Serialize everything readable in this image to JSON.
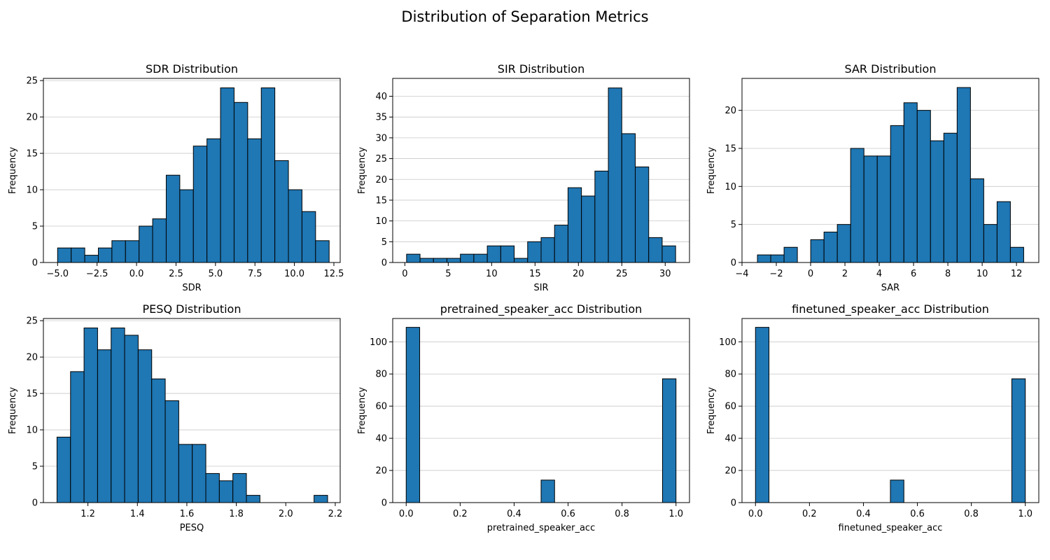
{
  "figure": {
    "title": "Distribution of Separation Metrics"
  },
  "colors": {
    "bar": "#1f77b4",
    "edge": "#000000",
    "grid": "#c8c8c8"
  },
  "chart_data": [
    {
      "type": "bar",
      "title": "SDR Distribution",
      "xlabel": "SDR",
      "ylabel": "Frequency",
      "bin_start": -5.0,
      "bin_width": 0.86,
      "values": [
        2,
        2,
        1,
        2,
        3,
        3,
        5,
        6,
        12,
        10,
        16,
        17,
        24,
        22,
        17,
        24,
        14,
        10,
        7,
        3
      ],
      "xlim": [
        -5.9,
        12.9
      ],
      "ylim": [
        0,
        25.3
      ],
      "xticks": [
        -5.0,
        -2.5,
        0.0,
        2.5,
        5.0,
        7.5,
        10.0,
        12.5
      ],
      "xtick_labels": [
        "−5.0",
        "−2.5",
        "0.0",
        "2.5",
        "5.0",
        "7.5",
        "10.0",
        "12.5"
      ],
      "yticks": [
        0,
        5,
        10,
        15,
        20,
        25
      ],
      "ytick_labels": [
        "0",
        "5",
        "10",
        "15",
        "20",
        "25"
      ],
      "grid": "y"
    },
    {
      "type": "bar",
      "title": "SIR Distribution",
      "xlabel": "SIR",
      "ylabel": "Frequency",
      "bin_start": 0.2,
      "bin_width": 1.55,
      "values": [
        2,
        1,
        1,
        1,
        2,
        2,
        4,
        4,
        1,
        5,
        6,
        9,
        18,
        16,
        22,
        42,
        31,
        23,
        6,
        4
      ],
      "xlim": [
        -1.4,
        32.8
      ],
      "ylim": [
        0,
        44.3
      ],
      "xticks": [
        0,
        5,
        10,
        15,
        20,
        25,
        30
      ],
      "xtick_labels": [
        "0",
        "5",
        "10",
        "15",
        "20",
        "25",
        "30"
      ],
      "yticks": [
        0,
        5,
        10,
        15,
        20,
        25,
        30,
        35,
        40
      ],
      "ytick_labels": [
        "0",
        "5",
        "10",
        "15",
        "20",
        "25",
        "30",
        "35",
        "40"
      ],
      "grid": "y"
    },
    {
      "type": "bar",
      "title": "SAR Distribution",
      "xlabel": "SAR",
      "ylabel": "Frequency",
      "bin_start": -3.1,
      "bin_width": 0.776,
      "values": [
        1,
        1,
        2,
        0,
        3,
        4,
        5,
        15,
        14,
        14,
        18,
        21,
        20,
        16,
        17,
        23,
        11,
        5,
        8,
        2
      ],
      "xlim": [
        -4.0,
        13.3
      ],
      "ylim": [
        0,
        24.2
      ],
      "xticks": [
        -4,
        -2,
        0,
        2,
        4,
        6,
        8,
        10,
        12
      ],
      "xtick_labels": [
        "−4",
        "−2",
        "0",
        "2",
        "4",
        "6",
        "8",
        "10",
        "12"
      ],
      "yticks": [
        0,
        5,
        10,
        15,
        20
      ],
      "ytick_labels": [
        "0",
        "5",
        "10",
        "15",
        "20"
      ],
      "grid": "y"
    },
    {
      "type": "bar",
      "title": "PESQ Distribution",
      "xlabel": "PESQ",
      "ylabel": "Frequency",
      "bin_start": 1.075,
      "bin_width": 0.0547,
      "values": [
        9,
        18,
        24,
        21,
        24,
        23,
        21,
        17,
        14,
        8,
        8,
        4,
        3,
        4,
        1,
        0,
        0,
        0,
        0,
        1
      ],
      "xlim": [
        1.02,
        2.22
      ],
      "ylim": [
        0,
        25.3
      ],
      "xticks": [
        1.2,
        1.4,
        1.6,
        1.8,
        2.0,
        2.2
      ],
      "xtick_labels": [
        "1.2",
        "1.4",
        "1.6",
        "1.8",
        "2.0",
        "2.2"
      ],
      "yticks": [
        0,
        5,
        10,
        15,
        20,
        25
      ],
      "ytick_labels": [
        "0",
        "5",
        "10",
        "15",
        "20",
        "25"
      ],
      "grid": "y"
    },
    {
      "type": "bar",
      "title": "pretrained_speaker_acc Distribution",
      "xlabel": "pretrained_speaker_acc",
      "ylabel": "Frequency",
      "bin_start": 0.0,
      "bin_width": 0.05,
      "values": [
        109,
        0,
        0,
        0,
        0,
        0,
        0,
        0,
        0,
        0,
        14,
        0,
        0,
        0,
        0,
        0,
        0,
        0,
        0,
        77
      ],
      "xlim": [
        -0.05,
        1.05
      ],
      "ylim": [
        0,
        114.5
      ],
      "xticks": [
        0.0,
        0.2,
        0.4,
        0.6,
        0.8,
        1.0
      ],
      "xtick_labels": [
        "0.0",
        "0.2",
        "0.4",
        "0.6",
        "0.8",
        "1.0"
      ],
      "yticks": [
        0,
        20,
        40,
        60,
        80,
        100
      ],
      "ytick_labels": [
        "0",
        "20",
        "40",
        "60",
        "80",
        "100"
      ],
      "grid": "y"
    },
    {
      "type": "bar",
      "title": "finetuned_speaker_acc Distribution",
      "xlabel": "finetuned_speaker_acc",
      "ylabel": "Frequency",
      "bin_start": 0.0,
      "bin_width": 0.05,
      "values": [
        109,
        0,
        0,
        0,
        0,
        0,
        0,
        0,
        0,
        0,
        14,
        0,
        0,
        0,
        0,
        0,
        0,
        0,
        0,
        77
      ],
      "xlim": [
        -0.05,
        1.05
      ],
      "ylim": [
        0,
        114.5
      ],
      "xticks": [
        0.0,
        0.2,
        0.4,
        0.6,
        0.8,
        1.0
      ],
      "xtick_labels": [
        "0.0",
        "0.2",
        "0.4",
        "0.6",
        "0.8",
        "1.0"
      ],
      "yticks": [
        0,
        20,
        40,
        60,
        80,
        100
      ],
      "ytick_labels": [
        "0",
        "20",
        "40",
        "60",
        "80",
        "100"
      ],
      "grid": "y"
    }
  ]
}
